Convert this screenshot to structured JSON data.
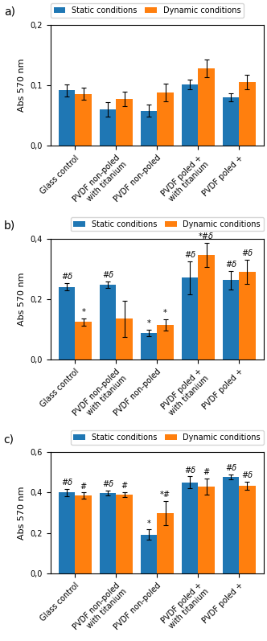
{
  "chart_data": [
    {
      "type": "bar",
      "title": "a)",
      "categories": [
        "Glass control",
        "PVDF non-poled\nwith titanium",
        "PVDF non-poled",
        "PVDF poled +\nwith titanium",
        "PVDF poled +"
      ],
      "ylabel": "Abs 570 nm",
      "ylim": [
        0,
        0.2
      ],
      "yticks": [
        {
          "value": 0.0,
          "label": "0,0"
        },
        {
          "value": 0.1,
          "label": "0,1"
        },
        {
          "value": 0.2,
          "label": "0,2"
        }
      ],
      "legend": "upper left",
      "series": [
        {
          "name": "Static conditions",
          "values": [
            0.092,
            0.06,
            0.058,
            0.102,
            0.08
          ],
          "errors": [
            0.01,
            0.012,
            0.01,
            0.008,
            0.007
          ]
        },
        {
          "name": "Dynamic conditions",
          "values": [
            0.086,
            0.078,
            0.088,
            0.128,
            0.106
          ],
          "errors": [
            0.01,
            0.012,
            0.015,
            0.015,
            0.012
          ]
        }
      ]
    },
    {
      "type": "bar",
      "title": "b)",
      "categories": [
        "Glass control",
        "PVDF non-poled\nwith titanium",
        "PVDF non-poled",
        "PVDF poled +\nwith titanium",
        "PVDF poled +"
      ],
      "ylabel": "Abs 570 nm",
      "ylim": [
        0,
        0.4
      ],
      "yticks": [
        {
          "value": 0.0,
          "label": "0,0"
        },
        {
          "value": 0.2,
          "label": "0,2"
        },
        {
          "value": 0.4,
          "label": "0,4"
        }
      ],
      "legend": "upper right",
      "series": [
        {
          "name": "Static conditions",
          "values": [
            0.24,
            0.248,
            0.088,
            0.27,
            0.262
          ],
          "errors": [
            0.012,
            0.01,
            0.01,
            0.055,
            0.03
          ],
          "annotations": [
            "#δ",
            "#δ",
            "*",
            "#δ",
            "#δ"
          ]
        },
        {
          "name": "Dynamic conditions",
          "values": [
            0.125,
            0.135,
            0.115,
            0.345,
            0.29
          ],
          "errors": [
            0.012,
            0.06,
            0.018,
            0.04,
            0.04
          ],
          "annotations": [
            "*",
            null,
            "*",
            "*#δ",
            "#δ"
          ]
        }
      ]
    },
    {
      "type": "bar",
      "title": "c)",
      "categories": [
        "Glass control",
        "PVDF non-poled\nwith titanium",
        "PVDF non-poled",
        "PVDF poled +\nwith titanium",
        "PVDF poled +"
      ],
      "ylabel": "Abs 570 nm",
      "ylim": [
        0,
        0.6
      ],
      "yticks": [
        {
          "value": 0.0,
          "label": "0,0"
        },
        {
          "value": 0.2,
          "label": "0,2"
        },
        {
          "value": 0.4,
          "label": "0,4"
        },
        {
          "value": 0.6,
          "label": "0,6"
        }
      ],
      "legend": "upper right",
      "series": [
        {
          "name": "Static conditions",
          "values": [
            0.4,
            0.398,
            0.192,
            0.45,
            0.478
          ],
          "errors": [
            0.018,
            0.012,
            0.025,
            0.03,
            0.012
          ],
          "annotations": [
            "#δ",
            "#δ",
            "*",
            "#δ",
            "#δ"
          ]
        },
        {
          "name": "Dynamic conditions",
          "values": [
            0.385,
            0.39,
            0.298,
            0.43,
            0.435
          ],
          "errors": [
            0.015,
            0.012,
            0.06,
            0.04,
            0.02
          ],
          "annotations": [
            "#",
            "#",
            "*#",
            "#",
            "#δ"
          ]
        }
      ]
    }
  ]
}
